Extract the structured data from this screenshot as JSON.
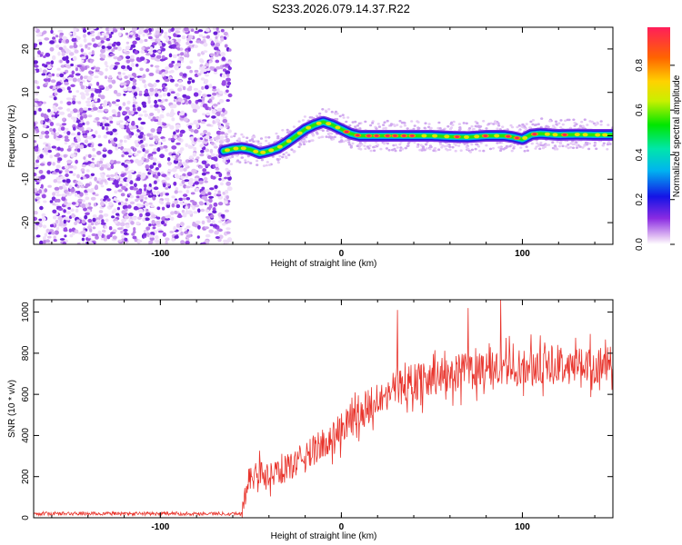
{
  "title": "S233.2026.079.14.37.R22",
  "colors": {
    "line": "#e8332b",
    "scatter": "#7a2fe0",
    "track_low": "#3b2fd6",
    "axis": "#000000"
  },
  "chart_data": [
    {
      "type": "heatmap",
      "title": "S233.2026.079.14.37.R22",
      "xlabel": "Height of straight line (km)",
      "ylabel": "Frequency (Hz)",
      "xlim": [
        -170,
        150
      ],
      "ylim": [
        -25,
        25
      ],
      "xticks": [
        -100,
        0,
        100
      ],
      "yticks": [
        -20,
        -10,
        0,
        10,
        20
      ],
      "noise_region_x": [
        -170,
        -63
      ],
      "track": {
        "x": [
          -65,
          -60,
          -55,
          -50,
          -45,
          -40,
          -35,
          -30,
          -25,
          -20,
          -15,
          -10,
          -5,
          0,
          5,
          10,
          20,
          30,
          40,
          50,
          60,
          70,
          80,
          90,
          95,
          100,
          105,
          110,
          120,
          130,
          140,
          150
        ],
        "y": [
          -3.5,
          -3,
          -2.8,
          -3.2,
          -4,
          -3.5,
          -2.8,
          -1.5,
          0,
          1.5,
          2.5,
          3.2,
          2.5,
          1.5,
          0.5,
          0,
          0,
          0,
          0,
          0,
          -0.2,
          -0.3,
          0,
          0,
          -0.3,
          -0.8,
          0.3,
          0.5,
          0.2,
          0.3,
          0.2,
          0.2
        ]
      },
      "colorbar": {
        "label": "Normalized spectral amplitude",
        "ticks": [
          "0.0",
          "0.2",
          "0.4",
          "0.6",
          "0.8"
        ],
        "range": [
          0,
          0.97
        ]
      }
    },
    {
      "type": "line",
      "xlabel": "Height of straight line (km)",
      "ylabel": "SNR (10 * v/v)",
      "xlim": [
        -170,
        150
      ],
      "ylim": [
        0,
        1060
      ],
      "xticks": [
        -100,
        0,
        100
      ],
      "yticks": [
        0,
        200,
        400,
        600,
        800,
        1000
      ],
      "series": [
        {
          "name": "SNR",
          "baseline_x": [
            -170,
            -55
          ],
          "baseline_y": 20,
          "trend_x": [
            -55,
            -52,
            -45,
            -40,
            -30,
            -20,
            -10,
            0,
            10,
            20,
            30,
            40,
            50,
            60,
            70,
            80,
            90,
            100,
            110,
            120,
            130,
            140,
            150
          ],
          "trend_y": [
            20,
            180,
            220,
            200,
            240,
            300,
            360,
            430,
            510,
            580,
            630,
            660,
            680,
            700,
            710,
            720,
            730,
            730,
            735,
            740,
            740,
            745,
            750
          ],
          "noise_amplitude": 90,
          "peaks": [
            {
              "x": 88,
              "y": 1060
            },
            {
              "x": 31,
              "y": 1010
            },
            {
              "x": 70,
              "y": 1020
            }
          ]
        }
      ]
    }
  ]
}
